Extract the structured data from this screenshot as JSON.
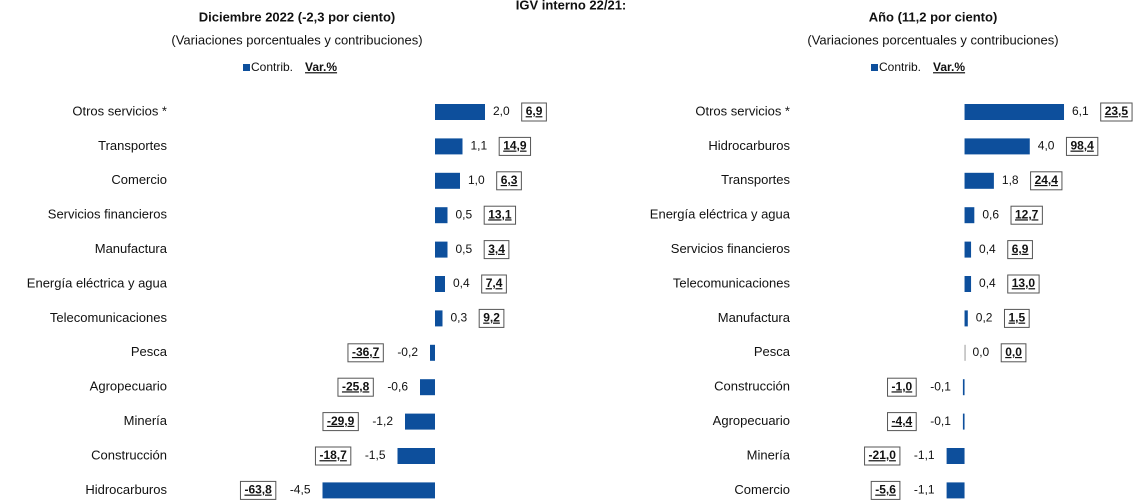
{
  "title": "IGV interno 22/21:",
  "chart_data": [
    {
      "type": "bar",
      "orientation": "horizontal",
      "title": "Diciembre 2022 (-2,3 por ciento)",
      "subtitle": "(Variaciones porcentuales y contribuciones)",
      "categories": [
        "Otros servicios *",
        "Transportes",
        "Comercio",
        "Servicios financieros",
        "Manufactura",
        "Energía eléctrica y agua",
        "Telecomunicaciones",
        "Pesca",
        "Agropecuario",
        "Minería",
        "Construcción",
        "Hidrocarburos"
      ],
      "series": [
        {
          "name": "Contrib.",
          "color": "#0d4f9c",
          "values": [
            2.0,
            1.1,
            1.0,
            0.5,
            0.5,
            0.4,
            0.3,
            -0.2,
            -0.6,
            -1.2,
            -1.5,
            -4.5
          ],
          "value_labels": [
            "2,0",
            "1,1",
            "1,0",
            "0,5",
            "0,5",
            "0,4",
            "0,3",
            "-0,2",
            "-0,6",
            "-1,2",
            "-1,5",
            "-4,5"
          ]
        },
        {
          "name": "Var.%",
          "values": [
            6.9,
            14.9,
            6.3,
            13.1,
            3.4,
            7.4,
            9.2,
            -36.7,
            -25.8,
            -29.9,
            -18.7,
            -63.8
          ],
          "value_labels": [
            "6,9",
            "14,9",
            "6,3",
            "13,1",
            "3,4",
            "7,4",
            "9,2",
            "-36,7",
            "-25,8",
            "-29,9",
            "-18,7",
            "-63,8"
          ]
        }
      ],
      "xlim": [
        -5,
        3
      ]
    },
    {
      "type": "bar",
      "orientation": "horizontal",
      "title": "Año (11,2 por ciento)",
      "subtitle": "(Variaciones porcentuales y contribuciones)",
      "categories": [
        "Otros servicios *",
        "Hidrocarburos",
        "Transportes",
        "Energía eléctrica y agua",
        "Servicios financieros",
        "Telecomunicaciones",
        "Manufactura",
        "Pesca",
        "Construcción",
        "Agropecuario",
        "Minería",
        "Comercio"
      ],
      "series": [
        {
          "name": "Contrib.",
          "color": "#0d4f9c",
          "values": [
            6.1,
            4.0,
            1.8,
            0.6,
            0.4,
            0.4,
            0.2,
            0.0,
            -0.1,
            -0.1,
            -1.1,
            -1.1
          ],
          "value_labels": [
            "6,1",
            "4,0",
            "1,8",
            "0,6",
            "0,4",
            "0,4",
            "0,2",
            "0,0",
            "-0,1",
            "-0,1",
            "-1,1",
            "-1,1"
          ]
        },
        {
          "name": "Var.%",
          "values": [
            23.5,
            98.4,
            24.4,
            12.7,
            6.9,
            13.0,
            1.5,
            0.0,
            -1.0,
            -4.4,
            -21.0,
            -5.6
          ],
          "value_labels": [
            "23,5",
            "98,4",
            "24,4",
            "12,7",
            "6,9",
            "13,0",
            "1,5",
            "0,0",
            "-1,0",
            "-4,4",
            "-21,0",
            "-5,6"
          ]
        }
      ],
      "xlim": [
        -5,
        8
      ]
    }
  ]
}
